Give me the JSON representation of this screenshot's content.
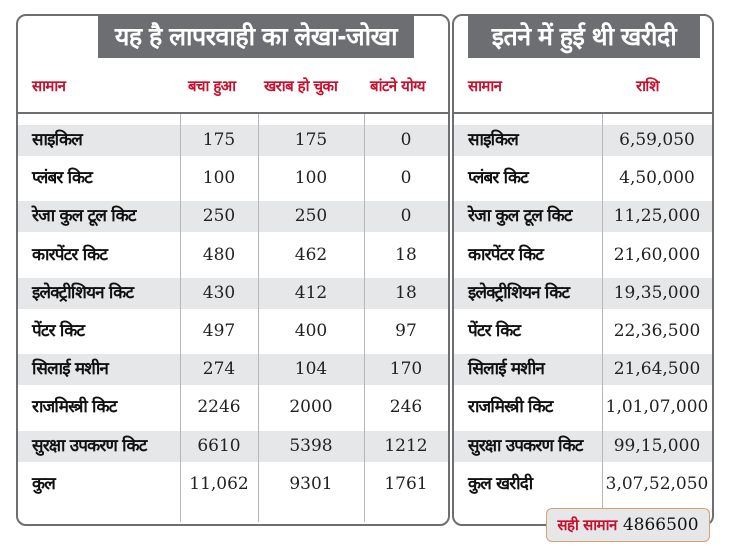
{
  "left_table": {
    "title": "यह है लापरवाही का लेखा-जोखा",
    "headers": [
      "सामान",
      "बचा हुआ",
      "खराब हो चुका",
      "बांटने योग्य"
    ],
    "rows": [
      [
        "साइकिल",
        "175",
        "175",
        "0"
      ],
      [
        "प्लंबर किट",
        "100",
        "100",
        "0"
      ],
      [
        "रेजा कुल टूल किट",
        "250",
        "250",
        "0"
      ],
      [
        "कारपेंटर किट",
        "480",
        "462",
        "18"
      ],
      [
        "इलेक्ट्रीशियन किट",
        "430",
        "412",
        "18"
      ],
      [
        "पेंटर किट",
        "497",
        "400",
        "97"
      ],
      [
        "सिलाई मशीन",
        "274",
        "104",
        "170"
      ],
      [
        "राजमिस्त्री किट",
        "2246",
        "2000",
        "246"
      ],
      [
        "सुरक्षा उपकरण किट",
        "6610",
        "5398",
        "1212"
      ],
      [
        "कुल",
        "11,062",
        "9301",
        "1761"
      ]
    ]
  },
  "right_table": {
    "title": "इतने में हुई थी खरीदी",
    "headers": [
      "सामान",
      "राशि"
    ],
    "rows": [
      [
        "साइकिल",
        "6,59,050"
      ],
      [
        "प्लंबर किट",
        "4,50,000"
      ],
      [
        "रेजा कुल टूल किट",
        "11,25,000"
      ],
      [
        "कारपेंटर किट",
        "21,60,000"
      ],
      [
        "इलेक्ट्रीशियन किट",
        "19,35,000"
      ],
      [
        "पेंटर किट",
        "22,36,500"
      ],
      [
        "सिलाई मशीन",
        "21,64,500"
      ],
      [
        "राजमिस्त्री किट",
        "1,01,07,000"
      ],
      [
        "सुरक्षा उपकरण किट",
        "99,15,000"
      ],
      [
        "कुल खरीदी",
        "3,07,52,050"
      ]
    ]
  },
  "footer": {
    "label": "सही सामान",
    "value": "4866500"
  },
  "colors": {
    "title_bg": "#6d6e71",
    "header_text": "#c8102e",
    "row_shade": "#e6e7e8"
  }
}
